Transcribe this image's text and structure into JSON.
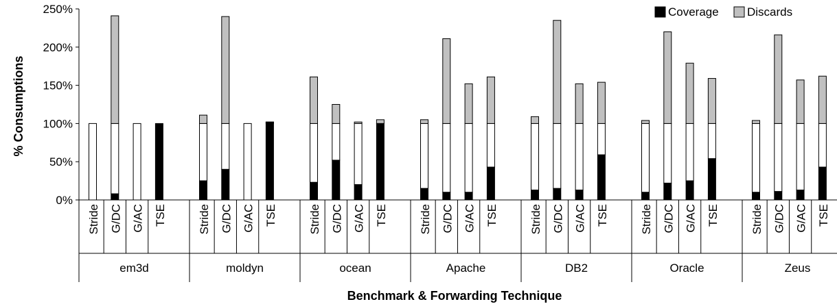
{
  "chart_data": {
    "type": "bar",
    "stacked": true,
    "ylabel": "% Consumptions",
    "xlabel": "Benchmark & Forwarding Technique",
    "ylim": [
      0,
      250
    ],
    "yticks": [
      0,
      50,
      100,
      150,
      200,
      250
    ],
    "ytick_labels": [
      "0%",
      "50%",
      "100%",
      "150%",
      "200%",
      "250%"
    ],
    "legend_position": "top-right",
    "legend": [
      {
        "name": "Coverage",
        "color": "#000000"
      },
      {
        "name": "Discards",
        "color": "#c0c0c0"
      }
    ],
    "techniques": [
      "Stride",
      "G/DC",
      "G/AC",
      "TSE"
    ],
    "groups": [
      {
        "name": "em3d",
        "coverage": [
          0,
          8,
          0,
          100
        ],
        "total": [
          100,
          241,
          100,
          100
        ]
      },
      {
        "name": "moldyn",
        "coverage": [
          25,
          40,
          0,
          102
        ],
        "total": [
          111,
          240,
          100,
          102
        ]
      },
      {
        "name": "ocean",
        "coverage": [
          23,
          52,
          20,
          100
        ],
        "total": [
          161,
          125,
          102,
          105
        ]
      },
      {
        "name": "Apache",
        "coverage": [
          15,
          10,
          10,
          43
        ],
        "total": [
          105,
          211,
          152,
          161
        ]
      },
      {
        "name": "DB2",
        "coverage": [
          13,
          15,
          13,
          59
        ],
        "total": [
          109,
          235,
          152,
          154
        ]
      },
      {
        "name": "Oracle",
        "coverage": [
          10,
          22,
          25,
          54
        ],
        "total": [
          104,
          220,
          179,
          159
        ]
      },
      {
        "name": "Zeus",
        "coverage": [
          10,
          11,
          13,
          43
        ],
        "total": [
          104,
          216,
          157,
          162
        ]
      }
    ],
    "colors": {
      "coverage": "#000000",
      "uncovered": "#ffffff",
      "discards": "#c0c0c0"
    }
  }
}
